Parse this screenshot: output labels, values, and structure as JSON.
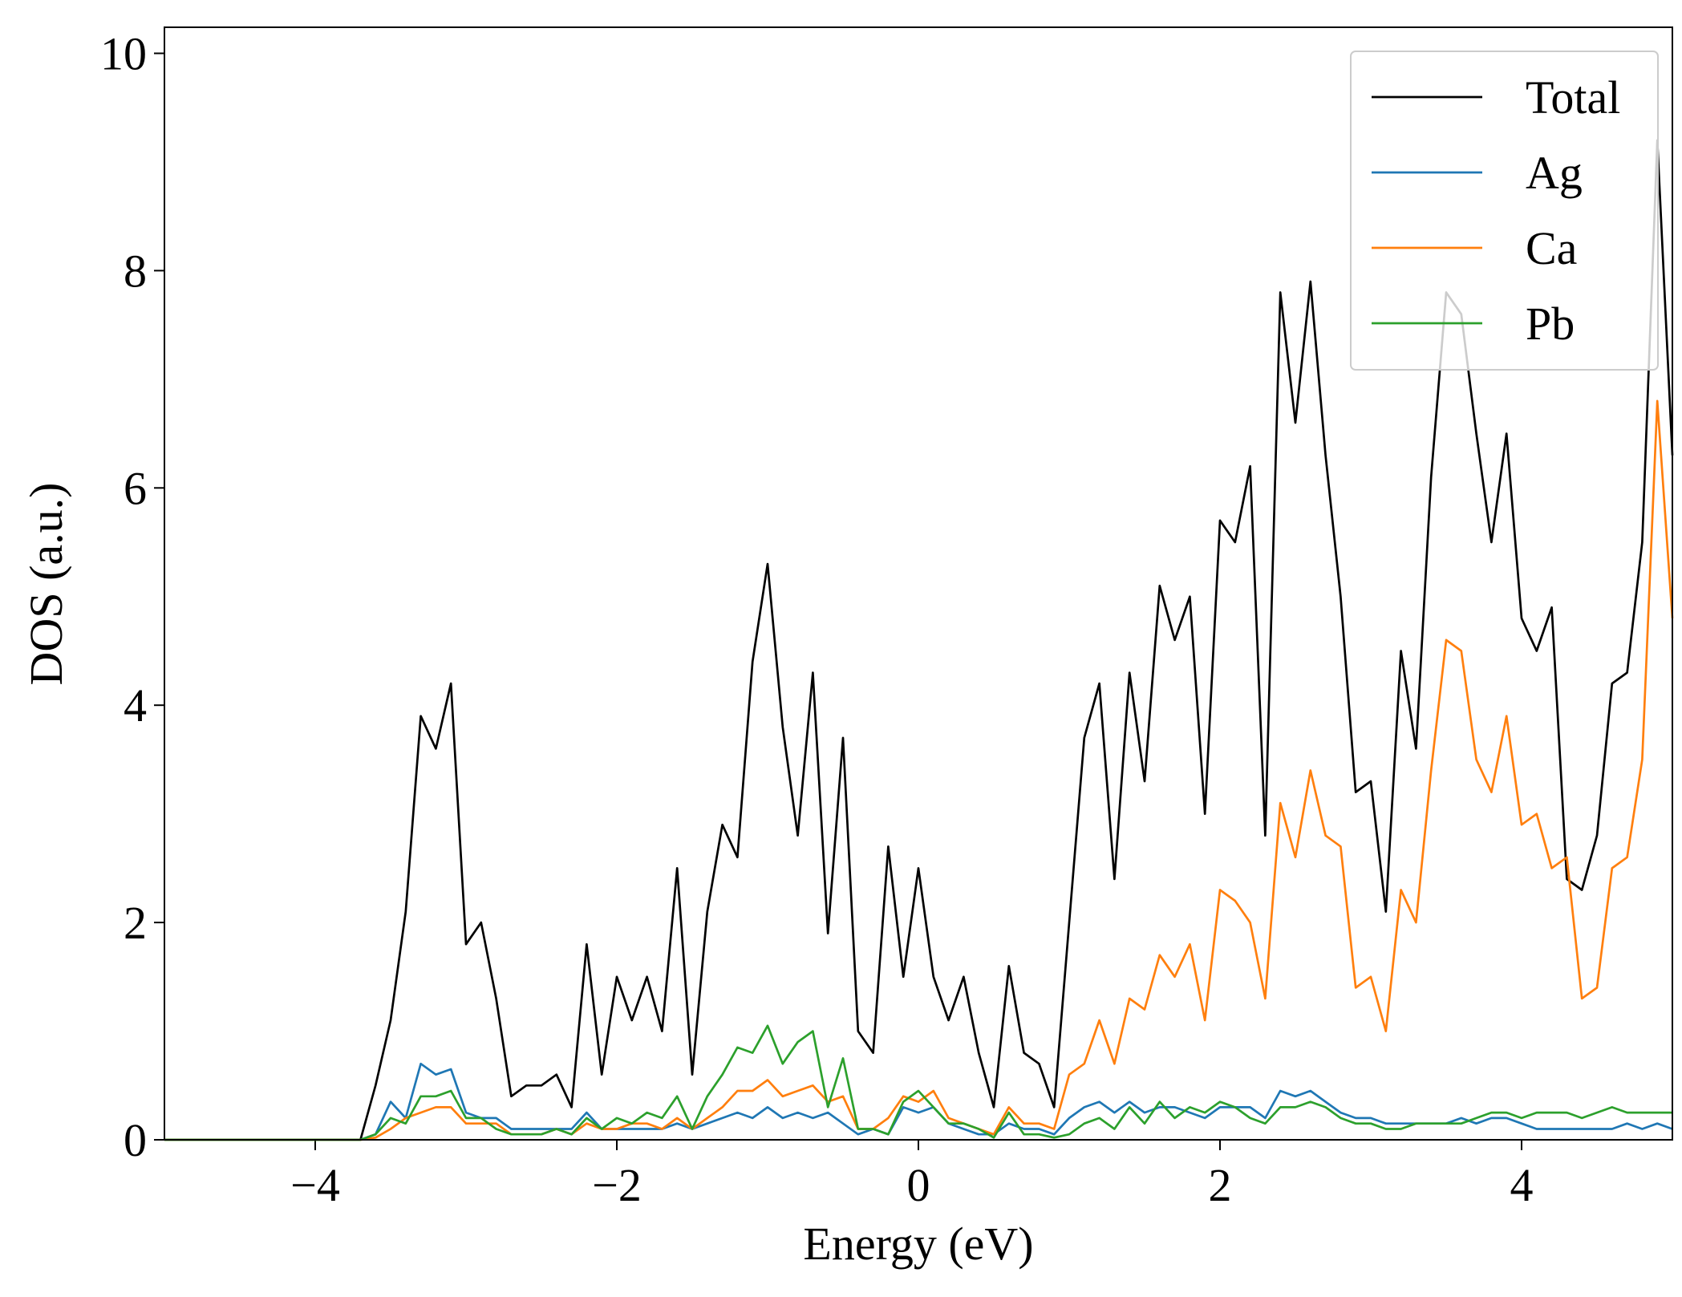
{
  "chart_data": {
    "type": "line",
    "xlabel": "Energy (eV)",
    "ylabel": "DOS (a.u.)",
    "x": [
      -5.0,
      -4.9,
      -4.8,
      -4.7,
      -4.6,
      -4.5,
      -4.4,
      -4.3,
      -4.2,
      -4.1,
      -4.0,
      -3.9,
      -3.8,
      -3.7,
      -3.6,
      -3.5,
      -3.4,
      -3.3,
      -3.2,
      -3.1,
      -3.0,
      -2.9,
      -2.8,
      -2.7,
      -2.6,
      -2.5,
      -2.4,
      -2.3,
      -2.2,
      -2.1,
      -2.0,
      -1.9,
      -1.8,
      -1.7,
      -1.6,
      -1.5,
      -1.4,
      -1.3,
      -1.2,
      -1.1,
      -1.0,
      -0.9,
      -0.8,
      -0.7,
      -0.6,
      -0.5,
      -0.4,
      -0.3,
      -0.2,
      -0.1,
      0.0,
      0.1,
      0.2,
      0.3,
      0.4,
      0.5,
      0.6,
      0.7,
      0.8,
      0.9,
      1.0,
      1.1,
      1.2,
      1.3,
      1.4,
      1.5,
      1.6,
      1.7,
      1.8,
      1.9,
      2.0,
      2.1,
      2.2,
      2.3,
      2.4,
      2.5,
      2.6,
      2.7,
      2.8,
      2.9,
      3.0,
      3.1,
      3.2,
      3.3,
      3.4,
      3.5,
      3.6,
      3.7,
      3.8,
      3.9,
      4.0,
      4.1,
      4.2,
      4.3,
      4.4,
      4.5,
      4.6,
      4.7,
      4.8,
      4.9,
      5.0
    ],
    "series": [
      {
        "name": "Total",
        "color": "#000000",
        "values": [
          0,
          0,
          0,
          0,
          0,
          0,
          0,
          0,
          0,
          0,
          0,
          0,
          0,
          0,
          0.5,
          1.1,
          2.1,
          3.9,
          3.6,
          4.2,
          1.8,
          2.0,
          1.3,
          0.4,
          0.5,
          0.5,
          0.6,
          0.3,
          1.8,
          0.6,
          1.5,
          1.1,
          1.5,
          1.0,
          2.5,
          0.6,
          2.1,
          2.9,
          2.6,
          4.4,
          5.3,
          3.8,
          2.8,
          4.3,
          1.9,
          3.7,
          1.0,
          0.8,
          2.7,
          1.5,
          2.5,
          1.5,
          1.1,
          1.5,
          0.8,
          0.3,
          1.6,
          0.8,
          0.7,
          0.3,
          2.0,
          3.7,
          4.2,
          2.4,
          4.3,
          3.3,
          5.1,
          4.6,
          5.0,
          3.0,
          5.7,
          5.5,
          6.2,
          2.8,
          7.8,
          6.6,
          7.9,
          6.3,
          5.0,
          3.2,
          3.3,
          2.1,
          4.5,
          3.6,
          6.1,
          7.8,
          7.6,
          6.5,
          5.5,
          6.5,
          4.8,
          4.5,
          4.9,
          2.4,
          2.3,
          2.8,
          4.2,
          4.3,
          5.5,
          9.2,
          6.3
        ]
      },
      {
        "name": "Ag",
        "color": "#1f77b4",
        "values": [
          0,
          0,
          0,
          0,
          0,
          0,
          0,
          0,
          0,
          0,
          0,
          0,
          0,
          0,
          0.05,
          0.35,
          0.2,
          0.7,
          0.6,
          0.65,
          0.25,
          0.2,
          0.2,
          0.1,
          0.1,
          0.1,
          0.1,
          0.1,
          0.25,
          0.1,
          0.1,
          0.1,
          0.1,
          0.1,
          0.15,
          0.1,
          0.15,
          0.2,
          0.25,
          0.2,
          0.3,
          0.2,
          0.25,
          0.2,
          0.25,
          0.15,
          0.05,
          0.1,
          0.05,
          0.3,
          0.25,
          0.3,
          0.15,
          0.1,
          0.05,
          0.05,
          0.15,
          0.1,
          0.1,
          0.05,
          0.2,
          0.3,
          0.35,
          0.25,
          0.35,
          0.25,
          0.3,
          0.3,
          0.25,
          0.2,
          0.3,
          0.3,
          0.3,
          0.2,
          0.45,
          0.4,
          0.45,
          0.35,
          0.25,
          0.2,
          0.2,
          0.15,
          0.15,
          0.15,
          0.15,
          0.15,
          0.2,
          0.15,
          0.2,
          0.2,
          0.15,
          0.1,
          0.1,
          0.1,
          0.1,
          0.1,
          0.1,
          0.15,
          0.1,
          0.15,
          0.1
        ]
      },
      {
        "name": "Ca",
        "color": "#ff7f0e",
        "values": [
          0,
          0,
          0,
          0,
          0,
          0,
          0,
          0,
          0,
          0,
          0,
          0,
          0,
          0,
          0.02,
          0.1,
          0.2,
          0.25,
          0.3,
          0.3,
          0.15,
          0.15,
          0.15,
          0.05,
          0.05,
          0.05,
          0.1,
          0.05,
          0.15,
          0.1,
          0.1,
          0.15,
          0.15,
          0.1,
          0.2,
          0.1,
          0.2,
          0.3,
          0.45,
          0.45,
          0.55,
          0.4,
          0.45,
          0.5,
          0.35,
          0.4,
          0.1,
          0.1,
          0.2,
          0.4,
          0.35,
          0.45,
          0.2,
          0.15,
          0.1,
          0.05,
          0.3,
          0.15,
          0.15,
          0.1,
          0.6,
          0.7,
          1.1,
          0.7,
          1.3,
          1.2,
          1.7,
          1.5,
          1.8,
          1.1,
          2.3,
          2.2,
          2.0,
          1.3,
          3.1,
          2.6,
          3.4,
          2.8,
          2.7,
          1.4,
          1.5,
          1.0,
          2.3,
          2.0,
          3.4,
          4.6,
          4.5,
          3.5,
          3.2,
          3.9,
          2.9,
          3.0,
          2.5,
          2.6,
          1.3,
          1.4,
          2.5,
          2.6,
          3.5,
          6.8,
          4.8
        ]
      },
      {
        "name": "Pb",
        "color": "#2ca02c",
        "values": [
          0,
          0,
          0,
          0,
          0,
          0,
          0,
          0,
          0,
          0,
          0,
          0,
          0,
          0,
          0.05,
          0.2,
          0.15,
          0.4,
          0.4,
          0.45,
          0.2,
          0.2,
          0.1,
          0.05,
          0.05,
          0.05,
          0.1,
          0.05,
          0.2,
          0.1,
          0.2,
          0.15,
          0.25,
          0.2,
          0.4,
          0.1,
          0.4,
          0.6,
          0.85,
          0.8,
          1.05,
          0.7,
          0.9,
          1.0,
          0.3,
          0.75,
          0.1,
          0.1,
          0.05,
          0.35,
          0.45,
          0.3,
          0.15,
          0.15,
          0.1,
          0.02,
          0.25,
          0.05,
          0.05,
          0.02,
          0.05,
          0.15,
          0.2,
          0.1,
          0.3,
          0.15,
          0.35,
          0.2,
          0.3,
          0.25,
          0.35,
          0.3,
          0.2,
          0.15,
          0.3,
          0.3,
          0.35,
          0.3,
          0.2,
          0.15,
          0.15,
          0.1,
          0.1,
          0.15,
          0.15,
          0.15,
          0.15,
          0.2,
          0.25,
          0.25,
          0.2,
          0.25,
          0.25,
          0.25,
          0.2,
          0.25,
          0.3,
          0.25,
          0.25,
          0.25,
          0.25
        ]
      }
    ],
    "xlim": [
      -5,
      5
    ],
    "ylim": [
      0,
      10.24
    ],
    "xticks": [
      {
        "value": -4,
        "label": "−4"
      },
      {
        "value": -2,
        "label": "−2"
      },
      0,
      2,
      4
    ],
    "yticks": [
      0,
      2,
      4,
      6,
      8,
      10
    ],
    "legend": "upper right"
  }
}
